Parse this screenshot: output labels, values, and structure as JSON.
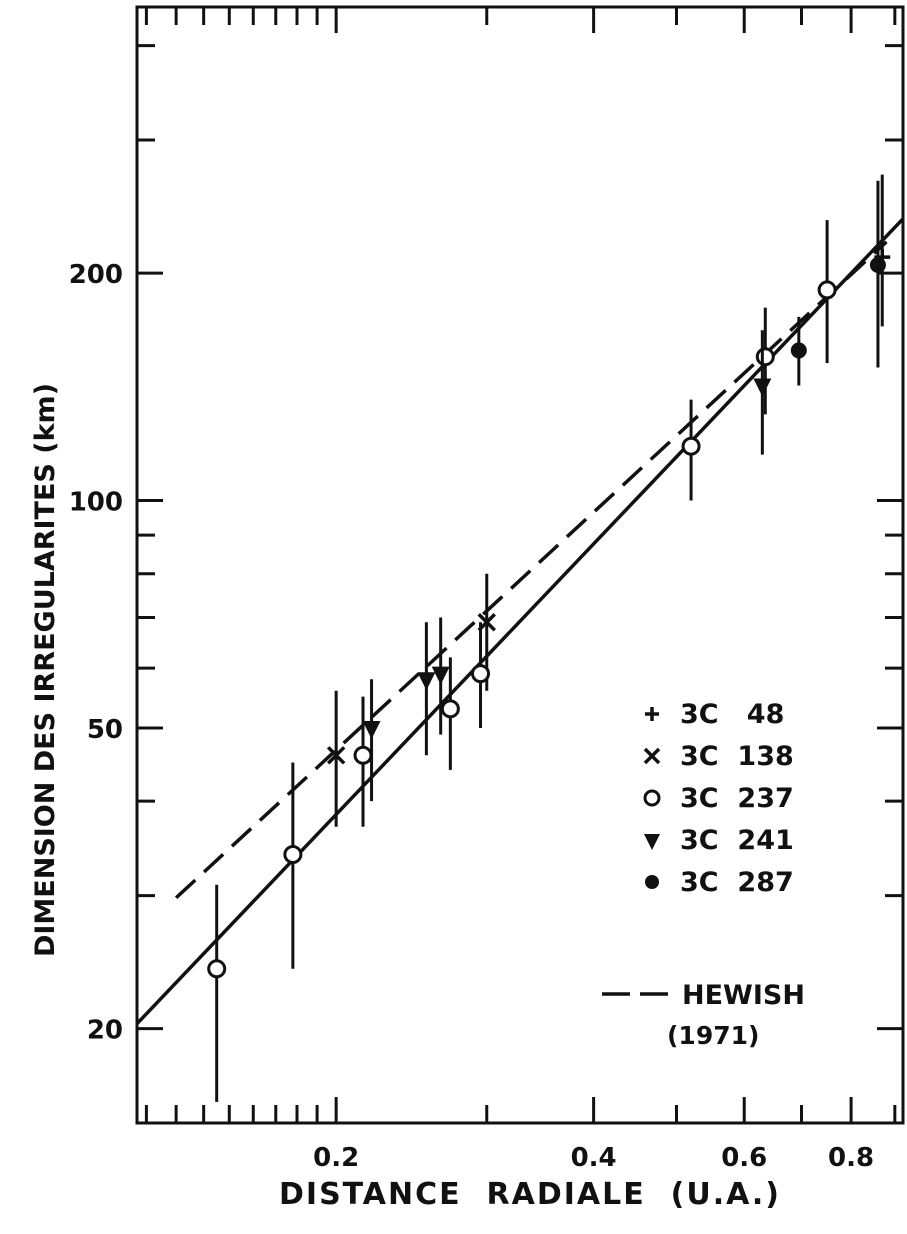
{
  "chart_data": {
    "type": "scatter",
    "title": "",
    "xlabel": "DISTANCE  RADIALE  (U.A.)",
    "ylabel": "DIMENSION DES IRREGULARITES (km)",
    "x_scale": "log",
    "y_scale": "log",
    "xlim": [
      0.117,
      0.92
    ],
    "ylim": [
      15,
      450
    ],
    "x_ticks": [
      {
        "value": 0.2,
        "label": "0.2"
      },
      {
        "value": 0.4,
        "label": "0.4"
      },
      {
        "value": 0.6,
        "label": "0.6"
      },
      {
        "value": 0.8,
        "label": "0.8"
      }
    ],
    "y_ticks": [
      {
        "value": 20,
        "label": "20"
      },
      {
        "value": 50,
        "label": "50"
      },
      {
        "value": 100,
        "label": "100"
      },
      {
        "value": 200,
        "label": "200"
      }
    ],
    "grid": false,
    "legend_position": "right",
    "series": [
      {
        "name": "3C   48",
        "marker": "plus",
        "points": [
          {
            "x": 0.87,
            "y": 210,
            "ylow": 170,
            "yhigh": 270
          }
        ]
      },
      {
        "name": "3C  138",
        "marker": "cross",
        "points": [
          {
            "x": 0.2,
            "y": 46,
            "ylow": 37,
            "yhigh": 56
          },
          {
            "x": 0.3,
            "y": 69,
            "ylow": 56,
            "yhigh": 80
          }
        ]
      },
      {
        "name": "3C  237",
        "marker": "open-circle",
        "points": [
          {
            "x": 0.145,
            "y": 24,
            "ylow": 16,
            "yhigh": 31
          },
          {
            "x": 0.178,
            "y": 34,
            "ylow": 24,
            "yhigh": 45
          },
          {
            "x": 0.215,
            "y": 46,
            "ylow": 37,
            "yhigh": 55
          },
          {
            "x": 0.272,
            "y": 53,
            "ylow": 44,
            "yhigh": 62
          },
          {
            "x": 0.295,
            "y": 59,
            "ylow": 50,
            "yhigh": 69
          },
          {
            "x": 0.52,
            "y": 118,
            "ylow": 100,
            "yhigh": 136
          },
          {
            "x": 0.635,
            "y": 155,
            "ylow": 130,
            "yhigh": 180
          },
          {
            "x": 0.75,
            "y": 190,
            "ylow": 152,
            "yhigh": 235
          }
        ]
      },
      {
        "name": "3C  241",
        "marker": "filled-triangle",
        "points": [
          {
            "x": 0.22,
            "y": 50,
            "ylow": 40,
            "yhigh": 58
          },
          {
            "x": 0.255,
            "y": 58,
            "ylow": 46,
            "yhigh": 69
          },
          {
            "x": 0.265,
            "y": 59,
            "ylow": 49,
            "yhigh": 70
          },
          {
            "x": 0.63,
            "y": 142,
            "ylow": 115,
            "yhigh": 168
          }
        ]
      },
      {
        "name": "3C  287",
        "marker": "filled-circle",
        "points": [
          {
            "x": 0.695,
            "y": 158,
            "ylow": 142,
            "yhigh": 175
          },
          {
            "x": 0.86,
            "y": 205,
            "ylow": 150,
            "yhigh": 265
          }
        ]
      }
    ],
    "fit_lines": [
      {
        "name": "",
        "style": "solid",
        "points": [
          {
            "x": 0.117,
            "y": 20.3
          },
          {
            "x": 0.92,
            "y": 236
          }
        ]
      },
      {
        "name": "HEWISH (1971)",
        "style": "dashed",
        "points": [
          {
            "x": 0.13,
            "y": 29.8
          },
          {
            "x": 0.88,
            "y": 220
          }
        ]
      }
    ],
    "annotations": [
      {
        "text": "HEWISH",
        "sub": "(1971)"
      }
    ]
  }
}
